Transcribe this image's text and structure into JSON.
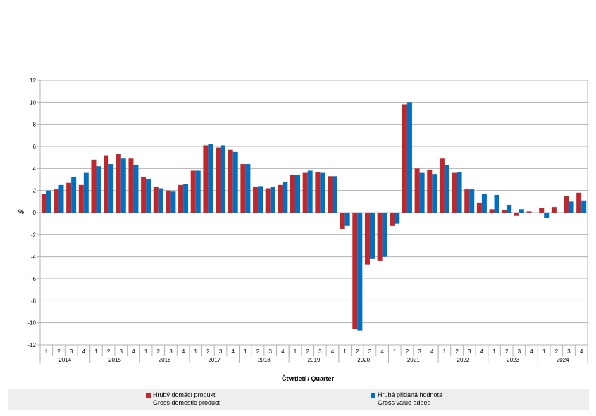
{
  "chart_data": {
    "type": "bar",
    "ylabel": "%",
    "xlabel": "Čtvrtletí / Quarter",
    "ylim": [
      -12,
      12
    ],
    "yticks": [
      -12,
      -10,
      -8,
      -6,
      -4,
      -2,
      0,
      2,
      4,
      6,
      8,
      10,
      12
    ],
    "grid": true,
    "legend_position": "bottom",
    "quarter_labels": [
      "1",
      "2",
      "3",
      "4"
    ],
    "years": [
      "2014",
      "2015",
      "2016",
      "2017",
      "2018",
      "2019",
      "2020",
      "2021",
      "2022",
      "2023",
      "2024"
    ],
    "series": [
      {
        "name": "Hrubý domácí produkt",
        "name_en": "Gross domestic product",
        "color": "#c0272d",
        "values": [
          1.7,
          2.1,
          2.7,
          2.5,
          4.8,
          5.2,
          5.3,
          4.9,
          3.2,
          2.3,
          2.0,
          2.5,
          3.8,
          6.1,
          5.9,
          5.7,
          4.4,
          2.3,
          2.2,
          2.5,
          3.4,
          3.6,
          3.7,
          3.3,
          -1.5,
          -10.6,
          -4.7,
          -4.4,
          -1.2,
          9.8,
          4.0,
          3.9,
          4.9,
          3.6,
          2.1,
          0.9,
          0.3,
          0.2,
          -0.3,
          0.1,
          0.4,
          0.5,
          1.5,
          1.8
        ]
      },
      {
        "name": "Hrubá přidaná hodnota",
        "name_en": "Gross value added",
        "color": "#0070c0",
        "values": [
          2.0,
          2.5,
          3.2,
          3.6,
          4.2,
          4.4,
          4.9,
          4.3,
          3.0,
          2.2,
          1.9,
          2.6,
          3.8,
          6.2,
          6.1,
          5.5,
          4.4,
          2.4,
          2.3,
          2.8,
          3.4,
          3.8,
          3.6,
          3.3,
          -1.2,
          -10.7,
          -4.2,
          -4.0,
          -1.0,
          10.0,
          3.6,
          3.5,
          4.3,
          3.7,
          2.1,
          1.7,
          1.6,
          0.7,
          0.3,
          0.0,
          -0.5,
          0.0,
          1.0,
          1.1
        ]
      }
    ]
  },
  "legend": {
    "items": [
      {
        "line1": "Hrubý domácí produkt",
        "line2": "Gross domestic product",
        "color": "#c0272d"
      },
      {
        "line1": "Hrubá přidaná hodnota",
        "line2": "Gross value added",
        "color": "#0070c0"
      }
    ]
  }
}
